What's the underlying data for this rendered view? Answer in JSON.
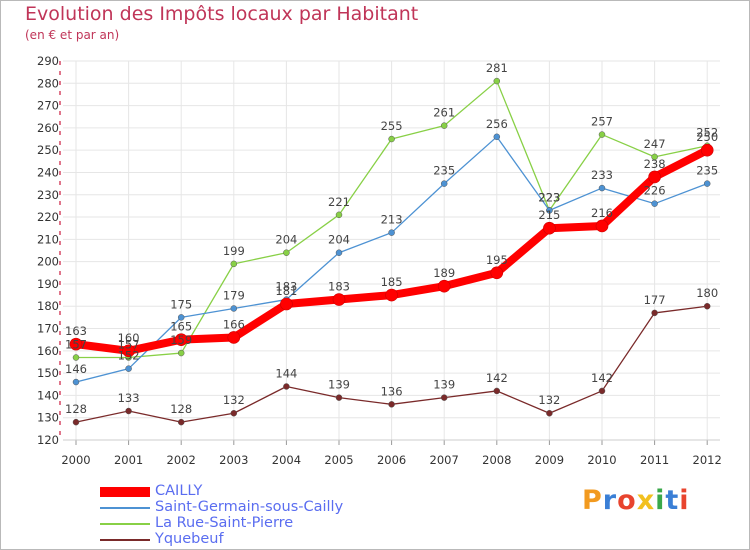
{
  "title": "Evolution des Impôts locaux par Habitant",
  "subtitle": "(en € et par an)",
  "logo": {
    "letters": [
      "P",
      "r",
      "o",
      "x",
      "i",
      "t",
      "i"
    ],
    "colors": [
      "#f29a1f",
      "#3a7fd6",
      "#e8442e",
      "#f2c01f",
      "#3aa84a",
      "#3a7fd6",
      "#e8442e"
    ]
  },
  "chart_data": {
    "type": "line",
    "title": "Evolution des Impôts locaux par Habitant",
    "subtitle": "(en € et par an)",
    "xlabel": "",
    "ylabel": "",
    "ylim": [
      120,
      290
    ],
    "yticks": [
      120,
      130,
      140,
      150,
      160,
      170,
      180,
      190,
      200,
      210,
      220,
      230,
      240,
      250,
      260,
      270,
      280,
      290
    ],
    "x": [
      "2000",
      "2001",
      "2002",
      "2003",
      "2004",
      "2005",
      "2006",
      "2007",
      "2008",
      "2009",
      "2010",
      "2011",
      "2012"
    ],
    "grid": true,
    "legend_position": "bottom-left",
    "series": [
      {
        "name": "La Rue-Saint-Pierre",
        "color": "#88d046",
        "values": [
          157,
          157,
          159,
          199,
          204,
          221,
          255,
          261,
          281,
          223,
          257,
          247,
          252
        ],
        "labels": [
          "157",
          "157",
          "159",
          "199",
          "204",
          "221",
          "255",
          "261",
          "281",
          "223",
          "257",
          "247",
          "252"
        ]
      },
      {
        "name": "Saint-Germain-sous-Cailly",
        "color": "#4d92d3",
        "values": [
          146,
          152,
          175,
          179,
          183,
          204,
          213,
          235,
          256,
          223,
          233,
          226,
          235
        ],
        "labels": [
          "146",
          "152",
          "175",
          "179",
          "183",
          "204",
          "213",
          "235",
          "256",
          "223",
          "233",
          "226",
          "235"
        ]
      },
      {
        "name": "Yquebeuf",
        "color": "#7a2a2a",
        "values": [
          128,
          133,
          128,
          132,
          144,
          139,
          136,
          139,
          142,
          132,
          142,
          177,
          180
        ],
        "labels": [
          "128",
          "133",
          "128",
          "132",
          "144",
          "139",
          "136",
          "139",
          "142",
          "132",
          "142",
          "177",
          "180"
        ]
      },
      {
        "name": "CAILLY",
        "color": "#ff0000",
        "values": [
          163,
          160,
          165,
          166,
          181,
          183,
          185,
          189,
          195,
          215,
          216,
          238,
          250
        ],
        "labels": [
          "163",
          "160",
          "165",
          "166",
          "181",
          "183",
          "185",
          "189",
          "195",
          "215",
          "216",
          "238",
          "250"
        ]
      }
    ],
    "legend": [
      {
        "name": "CAILLY",
        "color": "#ff0000"
      },
      {
        "name": "Saint-Germain-sous-Cailly",
        "color": "#4d92d3"
      },
      {
        "name": "La Rue-Saint-Pierre",
        "color": "#88d046"
      },
      {
        "name": "Yquebeuf",
        "color": "#7a2a2a"
      }
    ]
  }
}
